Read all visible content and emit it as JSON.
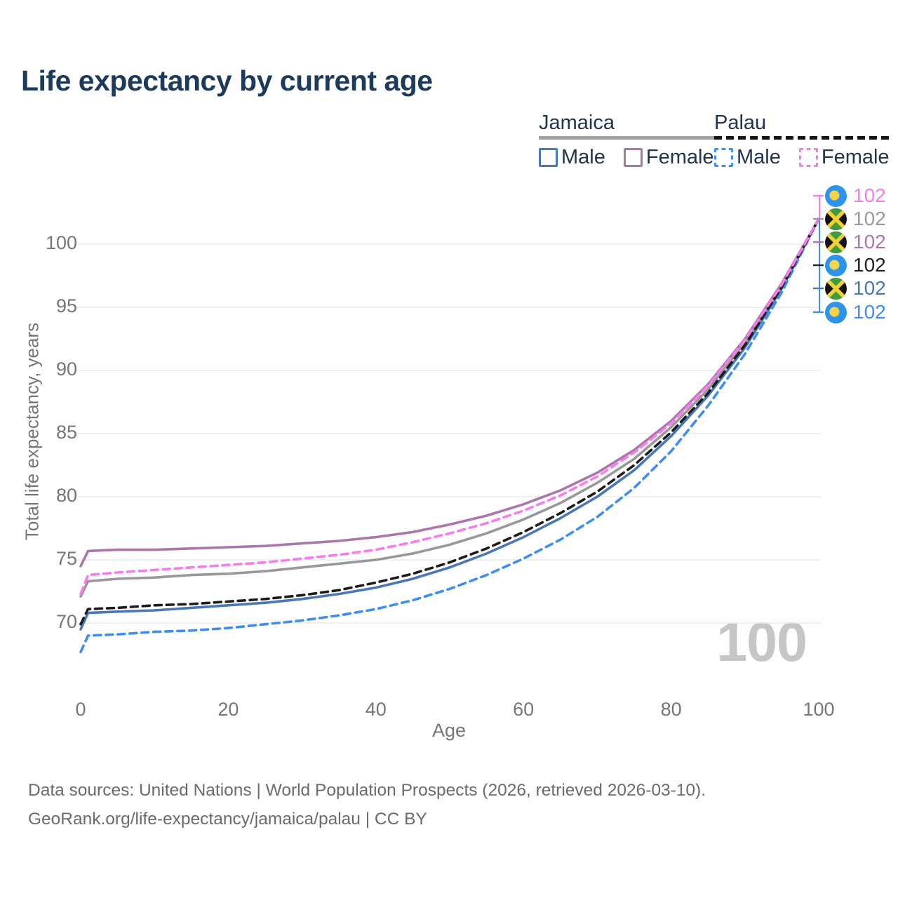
{
  "title": "Life expectancy by current age",
  "watermark": "100",
  "legend": {
    "groups": [
      {
        "label": "Jamaica",
        "line_style": "solid",
        "underline_color": "#a0a0a0",
        "items": [
          {
            "label": "Male",
            "color": "#4878ba"
          },
          {
            "label": "Female",
            "color": "#ac76ad"
          }
        ]
      },
      {
        "label": "Palau",
        "line_style": "dashed",
        "underline_color": "#151515",
        "items": [
          {
            "label": "Male",
            "color": "#3f8ef4"
          },
          {
            "label": "Female",
            "color": "#f87ce9"
          }
        ]
      }
    ]
  },
  "chart_data": {
    "type": "line",
    "title": "Life expectancy by current age",
    "xlabel": "Age",
    "ylabel": "Total life expectancy, years",
    "xlim": [
      0,
      100
    ],
    "ylim": [
      66,
      104
    ],
    "xticks": [
      0,
      20,
      40,
      60,
      80,
      100
    ],
    "yticks": [
      70,
      75,
      80,
      85,
      90,
      95,
      100
    ],
    "grid": "horizontal-only",
    "legend_position": "top-right",
    "x": [
      0,
      1,
      5,
      10,
      15,
      20,
      25,
      30,
      35,
      40,
      45,
      50,
      55,
      60,
      65,
      70,
      75,
      80,
      85,
      90,
      95,
      100
    ],
    "series": [
      {
        "name": "Jamaica Male",
        "country": "Jamaica",
        "sex": "Male",
        "color": "#4878ba",
        "dashed": false,
        "values": [
          69.5,
          70.8,
          70.9,
          71.0,
          71.2,
          71.4,
          71.6,
          71.9,
          72.3,
          72.8,
          73.5,
          74.4,
          75.5,
          76.8,
          78.3,
          80.0,
          82.1,
          84.8,
          88.0,
          91.8,
          96.5,
          102
        ]
      },
      {
        "name": "Jamaica Both sexes",
        "country": "Jamaica",
        "sex": "Both sexes",
        "color": "#999999",
        "dashed": false,
        "values": [
          72.1,
          73.3,
          73.5,
          73.6,
          73.8,
          73.9,
          74.1,
          74.4,
          74.7,
          75.0,
          75.5,
          76.2,
          77.1,
          78.2,
          79.5,
          81.1,
          83.0,
          85.5,
          88.5,
          92.2,
          96.7,
          102
        ]
      },
      {
        "name": "Jamaica Female",
        "country": "Jamaica",
        "sex": "Female",
        "color": "#ac76ad",
        "dashed": false,
        "values": [
          74.5,
          75.7,
          75.8,
          75.8,
          75.9,
          76.0,
          76.1,
          76.3,
          76.5,
          76.8,
          77.2,
          77.8,
          78.5,
          79.4,
          80.5,
          81.9,
          83.7,
          86.0,
          88.9,
          92.5,
          96.9,
          102
        ]
      },
      {
        "name": "Palau Male",
        "country": "Palau",
        "sex": "Male",
        "color": "#3f8ef4",
        "dashed": true,
        "values": [
          67.7,
          69.0,
          69.1,
          69.3,
          69.4,
          69.6,
          69.9,
          70.2,
          70.6,
          71.1,
          71.8,
          72.7,
          73.8,
          75.1,
          76.6,
          78.4,
          80.7,
          83.6,
          87.2,
          91.3,
          96.2,
          102
        ]
      },
      {
        "name": "Palau Both sexes",
        "country": "Palau",
        "sex": "Both sexes",
        "color": "#1c1c1c",
        "dashed": true,
        "values": [
          69.9,
          71.1,
          71.2,
          71.4,
          71.5,
          71.7,
          71.9,
          72.2,
          72.6,
          73.2,
          73.9,
          74.8,
          75.9,
          77.2,
          78.7,
          80.4,
          82.5,
          85.1,
          88.2,
          92.0,
          96.6,
          102
        ]
      },
      {
        "name": "Palau Female",
        "country": "Palau",
        "sex": "Female",
        "color": "#f87ce9",
        "dashed": true,
        "values": [
          72.3,
          73.8,
          74.0,
          74.2,
          74.4,
          74.6,
          74.8,
          75.1,
          75.4,
          75.8,
          76.4,
          77.1,
          77.9,
          78.9,
          80.1,
          81.6,
          83.5,
          85.8,
          88.8,
          92.4,
          96.8,
          102
        ]
      }
    ],
    "end_labels": [
      {
        "value": "102",
        "flag": "palau",
        "color": "#f87ce9",
        "series": "Palau Female"
      },
      {
        "value": "102",
        "flag": "jamaica",
        "color": "#999999",
        "series": "Jamaica Both sexes"
      },
      {
        "value": "102",
        "flag": "jamaica",
        "color": "#ac76ad",
        "series": "Jamaica Female"
      },
      {
        "value": "102",
        "flag": "palau",
        "color": "#222222",
        "series": "Palau Both sexes"
      },
      {
        "value": "102",
        "flag": "jamaica",
        "color": "#4878ba",
        "series": "Jamaica Male"
      },
      {
        "value": "102",
        "flag": "palau",
        "color": "#3f8ef4",
        "series": "Palau Male"
      }
    ],
    "flag_colors": {
      "palau": {
        "bg": "#2e93ea",
        "moon": "#f6d44a"
      },
      "jamaica": {
        "black": "#141414",
        "green": "#3f9b3f",
        "gold": "#f2d233"
      }
    }
  },
  "footer": {
    "line1": "Data sources: United Nations | World Population Prospects (2026, retrieved 2026-03-10).",
    "line2": "GeoRank.org/life-expectancy/jamaica/palau | CC BY"
  }
}
